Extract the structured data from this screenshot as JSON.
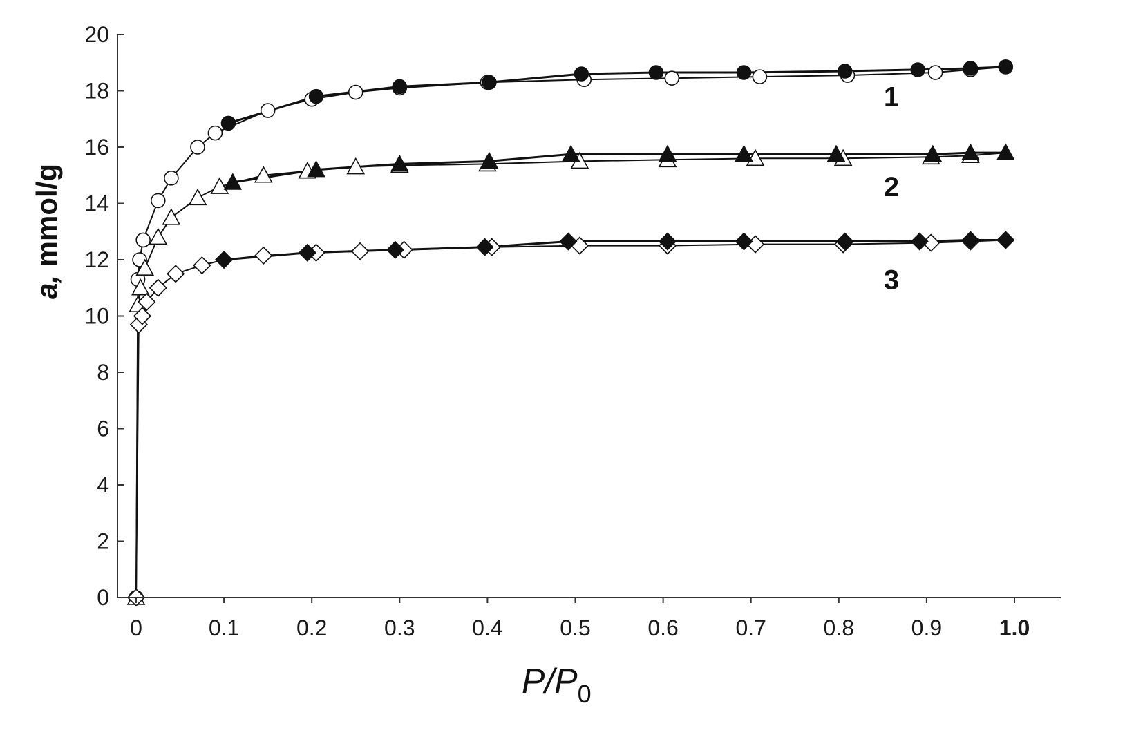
{
  "chart_data": {
    "type": "scatter",
    "xlabel": {
      "main": "P/P",
      "sub": "0"
    },
    "ylabel": {
      "symbol": "a,",
      "unit": " mmol/g"
    },
    "xlim": [
      0,
      1.04
    ],
    "ylim": [
      0,
      20
    ],
    "x_ticks": [
      {
        "v": 0,
        "label": "0"
      },
      {
        "v": 0.1,
        "label": "0.1"
      },
      {
        "v": 0.2,
        "label": "0.2"
      },
      {
        "v": 0.3,
        "label": "0.3"
      },
      {
        "v": 0.4,
        "label": "0.4"
      },
      {
        "v": 0.5,
        "label": "0.5"
      },
      {
        "v": 0.6,
        "label": "0.6"
      },
      {
        "v": 0.7,
        "label": "0.7"
      },
      {
        "v": 0.8,
        "label": "0.8"
      },
      {
        "v": 0.9,
        "label": "0.9"
      },
      {
        "v": 1.0,
        "label": "1.0"
      }
    ],
    "y_ticks": [
      {
        "v": 0,
        "label": "0"
      },
      {
        "v": 2,
        "label": "2"
      },
      {
        "v": 4,
        "label": "4"
      },
      {
        "v": 6,
        "label": "6"
      },
      {
        "v": 8,
        "label": "8"
      },
      {
        "v": 10,
        "label": "10"
      },
      {
        "v": 12,
        "label": "12"
      },
      {
        "v": 14,
        "label": "14"
      },
      {
        "v": 16,
        "label": "16"
      },
      {
        "v": 18,
        "label": "18"
      },
      {
        "v": 20,
        "label": "20"
      }
    ],
    "grid": false,
    "legend": "none",
    "marker_color": "#111111",
    "series": [
      {
        "curve": "1",
        "label_pos": {
          "x": 0.86,
          "y": 17.8
        },
        "marker": "circle",
        "filled": false,
        "branch": "adsorption",
        "x": [
          0,
          0.002,
          0.004,
          0.008,
          0.025,
          0.04,
          0.07,
          0.09,
          0.15,
          0.2,
          0.25,
          0.3,
          0.4,
          0.51,
          0.61,
          0.71,
          0.81,
          0.91,
          0.95,
          0.99
        ],
        "y": [
          0,
          11.3,
          12.0,
          12.7,
          14.1,
          14.9,
          16.0,
          16.5,
          17.3,
          17.7,
          17.95,
          18.1,
          18.3,
          18.4,
          18.45,
          18.5,
          18.55,
          18.65,
          18.75,
          18.85
        ]
      },
      {
        "curve": "1",
        "marker": "circle",
        "filled": true,
        "branch": "desorption",
        "x": [
          0.105,
          0.205,
          0.3,
          0.402,
          0.507,
          0.592,
          0.692,
          0.807,
          0.89,
          0.95,
          0.99
        ],
        "y": [
          16.85,
          17.8,
          18.15,
          18.3,
          18.6,
          18.65,
          18.65,
          18.7,
          18.75,
          18.8,
          18.85
        ]
      },
      {
        "curve": "2",
        "label_pos": {
          "x": 0.86,
          "y": 14.6
        },
        "marker": "triangle",
        "filled": false,
        "branch": "adsorption",
        "x": [
          0,
          0.002,
          0.005,
          0.01,
          0.025,
          0.04,
          0.07,
          0.095,
          0.145,
          0.195,
          0.25,
          0.3,
          0.4,
          0.505,
          0.605,
          0.705,
          0.805,
          0.905,
          0.95,
          0.99
        ],
        "y": [
          0,
          10.4,
          11.0,
          11.7,
          12.8,
          13.5,
          14.2,
          14.6,
          15.0,
          15.15,
          15.3,
          15.35,
          15.4,
          15.5,
          15.55,
          15.6,
          15.6,
          15.65,
          15.7,
          15.8
        ]
      },
      {
        "curve": "2",
        "marker": "triangle",
        "filled": true,
        "branch": "desorption",
        "x": [
          0.11,
          0.205,
          0.3,
          0.402,
          0.495,
          0.605,
          0.692,
          0.797,
          0.907,
          0.95,
          0.99
        ],
        "y": [
          14.75,
          15.2,
          15.4,
          15.5,
          15.75,
          15.75,
          15.75,
          15.75,
          15.75,
          15.8,
          15.8
        ]
      },
      {
        "curve": "3",
        "label_pos": {
          "x": 0.86,
          "y": 11.3
        },
        "marker": "diamond",
        "filled": false,
        "branch": "adsorption",
        "x": [
          0,
          0.003,
          0.007,
          0.012,
          0.025,
          0.045,
          0.075,
          0.1,
          0.145,
          0.205,
          0.255,
          0.305,
          0.405,
          0.505,
          0.605,
          0.705,
          0.805,
          0.905,
          0.95,
          0.99
        ],
        "y": [
          0,
          9.7,
          10.0,
          10.5,
          11.0,
          11.5,
          11.8,
          12.0,
          12.15,
          12.25,
          12.3,
          12.35,
          12.45,
          12.5,
          12.5,
          12.55,
          12.55,
          12.6,
          12.65,
          12.7
        ]
      },
      {
        "curve": "3",
        "marker": "diamond",
        "filled": true,
        "branch": "desorption",
        "x": [
          0.1,
          0.195,
          0.295,
          0.397,
          0.492,
          0.605,
          0.692,
          0.807,
          0.892,
          0.95,
          0.99
        ],
        "y": [
          12.0,
          12.25,
          12.35,
          12.45,
          12.65,
          12.65,
          12.65,
          12.65,
          12.65,
          12.7,
          12.7
        ]
      }
    ]
  }
}
